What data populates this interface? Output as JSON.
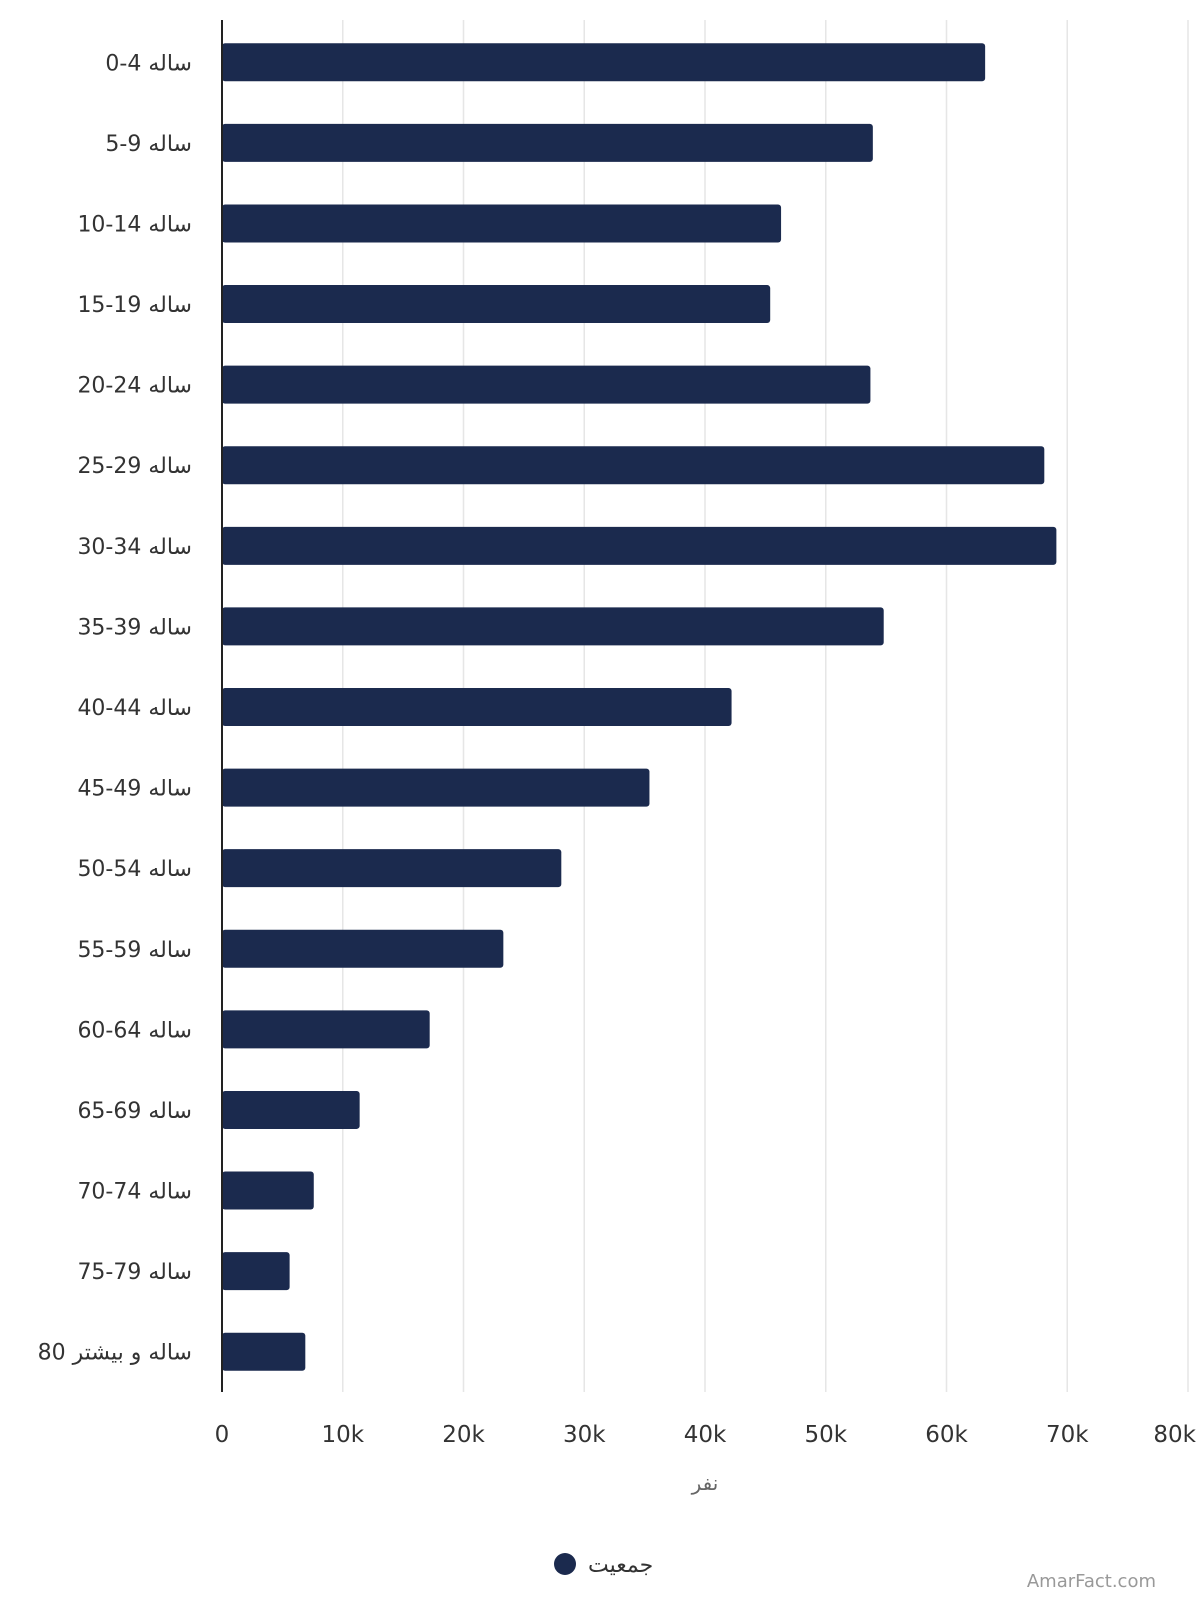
{
  "chart_data": {
    "type": "bar",
    "orientation": "horizontal",
    "categories": [
      "0-4 ساله",
      "5-9 ساله",
      "10-14 ساله",
      "15-19 ساله",
      "20-24 ساله",
      "25-29 ساله",
      "30-34 ساله",
      "35-39 ساله",
      "40-44 ساله",
      "45-49 ساله",
      "50-54 ساله",
      "55-59 ساله",
      "60-64 ساله",
      "65-69 ساله",
      "70-74 ساله",
      "75-79 ساله",
      "80 ساله و بیشتر"
    ],
    "series": [
      {
        "name": "جمعیت",
        "color": "#1b2a4e",
        "values": [
          63200,
          53900,
          46300,
          45400,
          53700,
          68100,
          69100,
          54800,
          42200,
          35400,
          28100,
          23300,
          17200,
          11400,
          7600,
          5600,
          6900
        ]
      }
    ],
    "xlabel": "نفر",
    "ylabel": "",
    "xlim": [
      0,
      80000
    ],
    "xticks": [
      "0",
      "10k",
      "20k",
      "30k",
      "40k",
      "50k",
      "60k",
      "70k",
      "80k"
    ],
    "grid": true,
    "legend_position": "bottom-center"
  },
  "legend": {
    "label": "جمعیت"
  },
  "watermark": "AmarFact.com"
}
